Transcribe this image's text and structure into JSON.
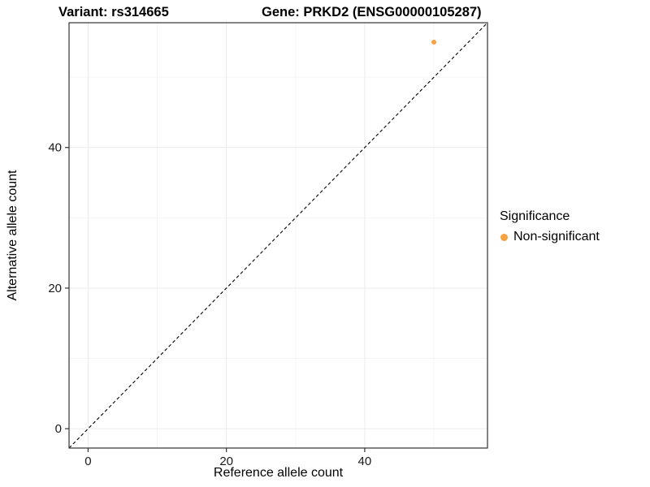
{
  "title": {
    "variant": "Variant: rs314665",
    "gene": "Gene: PRKD2 (ENSG00000105287)"
  },
  "chart_data": {
    "type": "scatter",
    "title_left": "Variant: rs314665",
    "title_right": "Gene: PRKD2 (ENSG00000105287)",
    "xlabel": "Reference allele count",
    "ylabel": "Alternative allele count",
    "xlim": [
      -2.75,
      57.75
    ],
    "ylim": [
      -2.75,
      57.75
    ],
    "xticks": [
      0,
      20,
      40
    ],
    "yticks": [
      0,
      20,
      40
    ],
    "minor_xticks": [
      10,
      30,
      50
    ],
    "minor_yticks": [
      10,
      30,
      50
    ],
    "grid": true,
    "panel_border_color": "#333333",
    "grid_major_color": "#EBEBEB",
    "grid_minor_color": "#F4F4F4",
    "identity_line": {
      "style": "dashed",
      "color": "#000000"
    },
    "series": [
      {
        "name": "Non-significant",
        "color": "#F8A13E",
        "points": [
          {
            "x": 50,
            "y": 55
          }
        ]
      }
    ],
    "legend": {
      "title": "Significance",
      "position": "right",
      "items": [
        {
          "label": "Non-significant",
          "color": "#F8A13E"
        }
      ]
    }
  }
}
